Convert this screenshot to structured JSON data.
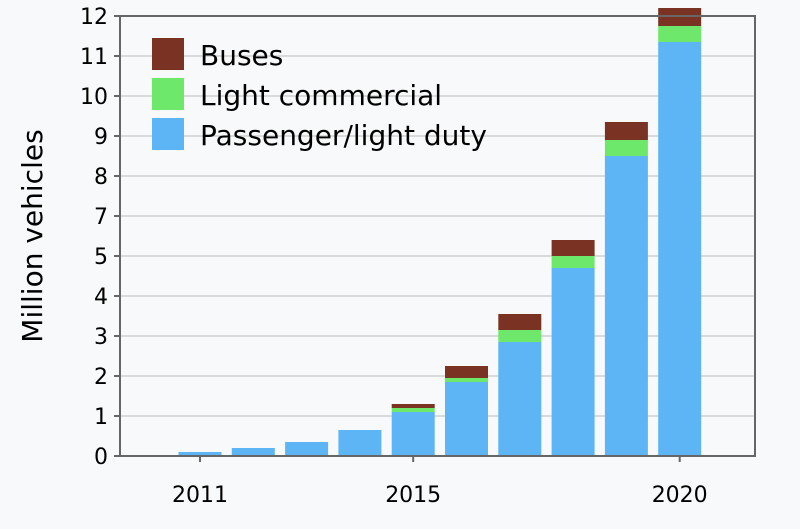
{
  "chart_data": {
    "type": "bar",
    "stacked": true,
    "title": "",
    "xlabel": "",
    "ylabel": "Million vehicles",
    "ylim": [
      0,
      11
    ],
    "y_ticks": [
      0,
      1,
      2,
      3,
      4,
      5,
      7,
      8,
      9,
      10,
      11,
      12
    ],
    "grid": true,
    "legend_position": "top-left",
    "categories": [
      "2011",
      "2012",
      "2013",
      "2014",
      "2015",
      "2016",
      "2017",
      "2018",
      "2019",
      "2020"
    ],
    "x_tick_labels": [
      "2011",
      "2015",
      "2020"
    ],
    "series": [
      {
        "name": "Passenger/light duty",
        "color": "#5eb5f5",
        "values": [
          0.1,
          0.2,
          0.35,
          0.65,
          1.1,
          1.85,
          2.85,
          4.7,
          7.5,
          10.35
        ]
      },
      {
        "name": "Light commercial",
        "color": "#6ee86a",
        "values": [
          0,
          0,
          0,
          0,
          0.1,
          0.1,
          0.3,
          0.3,
          0.4,
          0.4
        ]
      },
      {
        "name": "Buses",
        "color": "#7a3322",
        "values": [
          0,
          0,
          0,
          0,
          0.1,
          0.3,
          0.4,
          0.4,
          0.45,
          0.45
        ]
      }
    ],
    "legend_order": [
      "Buses",
      "Light commercial",
      "Passenger/light duty"
    ]
  }
}
